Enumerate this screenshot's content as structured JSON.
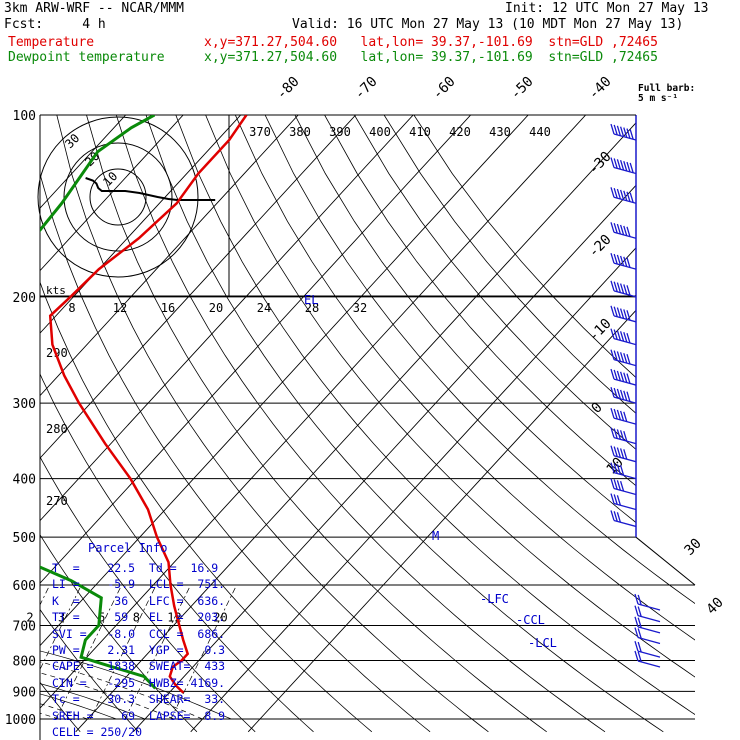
{
  "header": {
    "model_line": "3km ARW-WRF -- NCAR/MMM",
    "init_line": "Init: 12 UTC Mon 27 May 13",
    "fcst_line": "Fcst:     4 h",
    "valid_line": "Valid: 16 UTC Mon 27 May 13 (10 MDT Mon 27 May 13)",
    "temp_label": "Temperature",
    "dew_label": "Dewpoint temperature",
    "temp_info": "x,y=371.27,504.60   lat,lon= 39.37,-101.69  stn=GLD ,72465",
    "dew_info": "x,y=371.27,504.60   lat,lon= 39.37,-101.69  stn=GLD ,72465"
  },
  "barb_key": {
    "line1": "Full barb:",
    "line2": "5 m s⁻¹"
  },
  "hodograph": {
    "unit_label": "kts",
    "ring_labels": [
      "10",
      "20",
      "30"
    ],
    "points": [
      [
        -18,
        38
      ],
      [
        -14,
        33
      ],
      [
        -12,
        27
      ],
      [
        -11,
        18
      ],
      [
        -9,
        12
      ],
      [
        -4,
        12
      ],
      [
        4,
        12
      ],
      [
        12,
        8
      ],
      [
        22,
        0
      ],
      [
        28,
        -4
      ],
      [
        33,
        -6
      ],
      [
        44,
        -6
      ],
      [
        54,
        -6
      ]
    ]
  },
  "colors": {
    "temperature": "#e00000",
    "dewpoint": "#0a8a0a",
    "parcel_text": "#0000cc",
    "barbs": "#1a1acc"
  },
  "parcel_info": {
    "title": "Parcel Info",
    "rows": [
      "T  =    22.5  Td =  16.9",
      "LI =    -5.9  LCL =  751.",
      "K  =     36   LFC =  636.",
      "TT =     59   EL  =  203.",
      "SVI =   -8.0  CCL =  686.",
      "PW =    2.31  YGP =   0.3",
      "CAPE =  1838  SWEAT=  433",
      "CIN =   -295  HWBZ= 4169.",
      "Tc =    30.3  SHEAR=  33.",
      "SREH =    69  LAPSE=  8.9",
      "CELL = 250/20"
    ]
  },
  "chart_data": {
    "type": "line",
    "title": "Skew-T log-P sounding",
    "ylabel": "Pressure (hPa)",
    "y_scale": "log-reversed",
    "pressure_levels": [
      100,
      200,
      300,
      400,
      500,
      600,
      700,
      800,
      900,
      1000
    ],
    "isotherms_c": [
      -80,
      -70,
      -60,
      -50,
      -40,
      -30,
      -20,
      -10,
      0,
      10,
      20,
      30,
      40
    ],
    "theta_labels": [
      290,
      280,
      270
    ],
    "theta_e_labels": [
      370,
      380,
      390,
      400,
      410,
      420,
      430,
      440
    ],
    "mixing_ratio_labels": [
      2,
      3,
      5,
      8,
      12,
      20
    ],
    "hodograph_speed_labels": [
      8,
      12,
      16,
      20,
      24,
      28,
      32
    ],
    "annotations": [
      "LFC",
      "CCL",
      "LCL",
      "EL",
      "M"
    ],
    "series": [
      {
        "name": "Temperature",
        "points": [
          [
            100,
            -59
          ],
          [
            110,
            -58
          ],
          [
            125,
            -58
          ],
          [
            140,
            -57
          ],
          [
            160,
            -58
          ],
          [
            180,
            -60
          ],
          [
            200,
            -60.5
          ],
          [
            215,
            -61
          ],
          [
            240,
            -56
          ],
          [
            270,
            -49
          ],
          [
            300,
            -42
          ],
          [
            350,
            -31
          ],
          [
            400,
            -21
          ],
          [
            450,
            -13
          ],
          [
            500,
            -7
          ],
          [
            550,
            -1
          ],
          [
            600,
            3
          ],
          [
            650,
            7
          ],
          [
            700,
            11
          ],
          [
            740,
            14
          ],
          [
            780,
            17
          ],
          [
            800,
            17
          ],
          [
            820,
            16.5
          ],
          [
            850,
            17.5
          ],
          [
            880,
            20
          ],
          [
            905,
            22.5
          ]
        ]
      },
      {
        "name": "Dewpoint temperature",
        "points": [
          [
            100,
            -75
          ],
          [
            105,
            -77
          ],
          [
            115,
            -79
          ],
          [
            140,
            -77
          ],
          [
            170,
            -76
          ],
          [
            200,
            -75
          ],
          [
            220,
            -74
          ],
          [
            250,
            -70
          ],
          [
            280,
            -70
          ],
          [
            300,
            -71
          ],
          [
            330,
            -75
          ],
          [
            360,
            -70
          ],
          [
            400,
            -62
          ],
          [
            440,
            -58
          ],
          [
            470,
            -53
          ],
          [
            500,
            -42
          ],
          [
            540,
            -28
          ],
          [
            590,
            -15
          ],
          [
            630,
            -7
          ],
          [
            700,
            -3
          ],
          [
            740,
            -3
          ],
          [
            790,
            -1
          ],
          [
            820,
            6
          ],
          [
            850,
            13
          ],
          [
            870,
            15
          ],
          [
            890,
            16.9
          ]
        ]
      }
    ],
    "wind_barbs": [
      {
        "p": 110,
        "spd_ms": 35
      },
      {
        "p": 125,
        "spd_ms": 35
      },
      {
        "p": 140,
        "spd_ms": 35
      },
      {
        "p": 160,
        "spd_ms": 30
      },
      {
        "p": 180,
        "spd_ms": 30
      },
      {
        "p": 200,
        "spd_ms": 30
      },
      {
        "p": 220,
        "spd_ms": 30
      },
      {
        "p": 240,
        "spd_ms": 30
      },
      {
        "p": 260,
        "spd_ms": 30
      },
      {
        "p": 280,
        "spd_ms": 30
      },
      {
        "p": 300,
        "spd_ms": 30
      },
      {
        "p": 325,
        "spd_ms": 25
      },
      {
        "p": 350,
        "spd_ms": 25
      },
      {
        "p": 375,
        "spd_ms": 25
      },
      {
        "p": 400,
        "spd_ms": 20
      },
      {
        "p": 425,
        "spd_ms": 20
      },
      {
        "p": 450,
        "spd_ms": 15
      },
      {
        "p": 480,
        "spd_ms": 15
      },
      {
        "p": 660,
        "spd_ms": 10
      },
      {
        "p": 690,
        "spd_ms": 10
      },
      {
        "p": 720,
        "spd_ms": 10
      },
      {
        "p": 750,
        "spd_ms": 10
      },
      {
        "p": 790,
        "spd_ms": 10
      },
      {
        "p": 820,
        "spd_ms": 10
      }
    ]
  }
}
